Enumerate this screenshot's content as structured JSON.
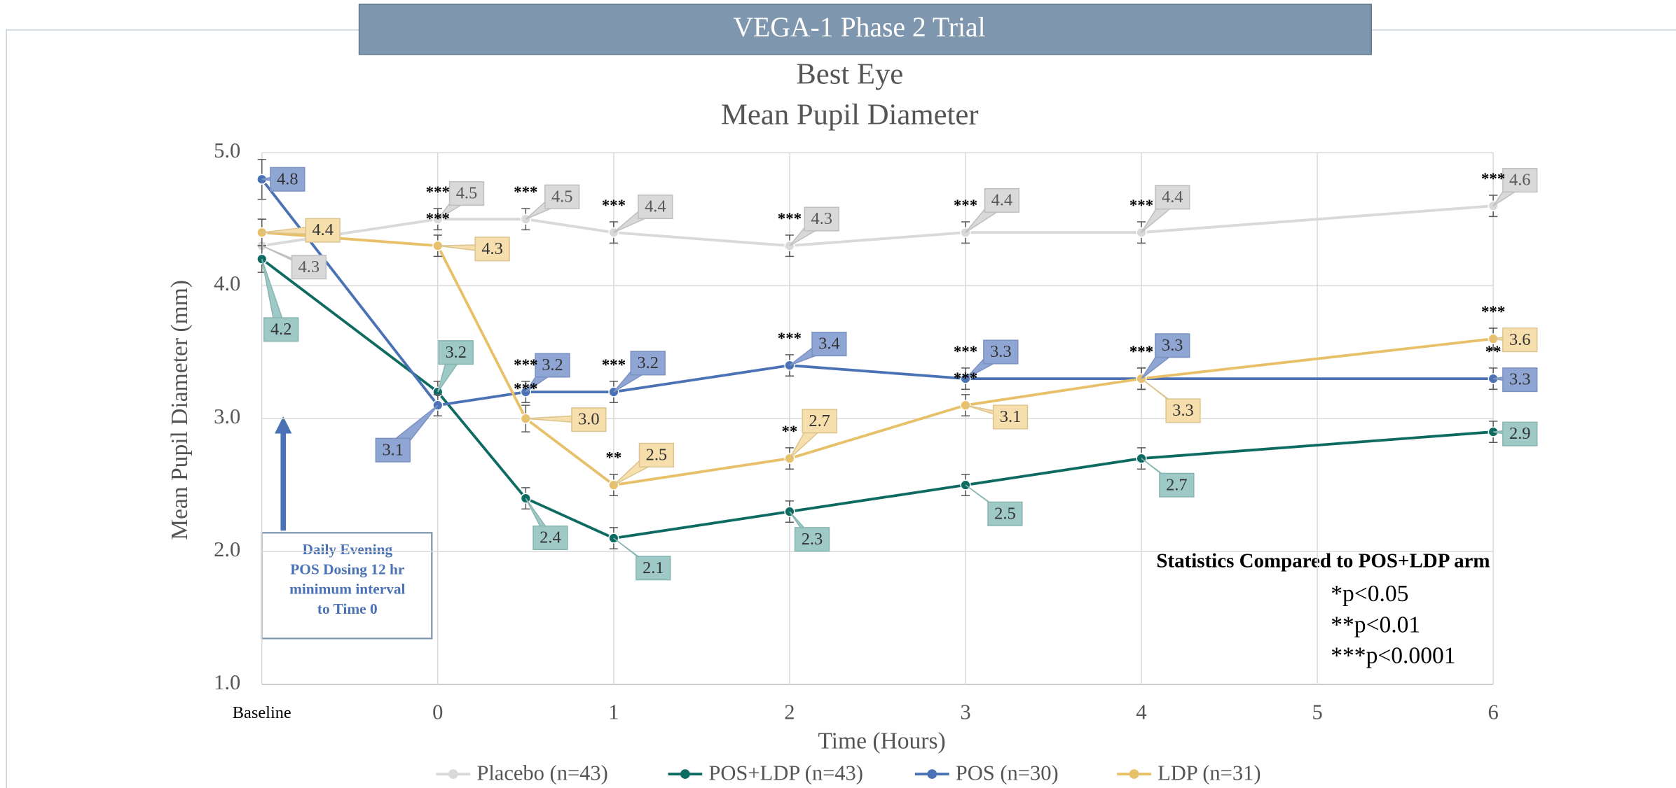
{
  "chart_data": {
    "type": "line",
    "header": "VEGA-1 Phase 2 Trial",
    "title": "Best Eye",
    "subtitle": "Mean Pupil Diameter",
    "x_label": "Time (Hours)",
    "y_label": "Mean Pupil Diameter (mm)",
    "x": [
      -1,
      0,
      0.5,
      1,
      2,
      3,
      4,
      6
    ],
    "xlim": [
      -1,
      6
    ],
    "xticks": [
      {
        "value": -1,
        "label": "Baseline"
      },
      0,
      1,
      2,
      3,
      4,
      5,
      6
    ],
    "ylim": [
      1,
      5
    ],
    "yticks": [
      {
        "value": 1,
        "label": "1.0"
      },
      {
        "value": 2,
        "label": "2.0"
      },
      {
        "value": 3,
        "label": "3.0"
      },
      {
        "value": 4,
        "label": "4.0"
      },
      {
        "value": 5,
        "label": "5.0"
      }
    ],
    "grid": true,
    "legend": "bottom",
    "series": [
      {
        "name": "Placebo (n=43)",
        "color": "#d9d9d9",
        "values": [
          4.3,
          4.5,
          4.5,
          4.4,
          4.3,
          4.4,
          4.4,
          4.6
        ],
        "value_labels": [
          "4.3",
          "4.5",
          "4.5",
          "4.4",
          "4.3",
          "4.4",
          "4.4",
          "4.6"
        ],
        "errors": [
          0.08,
          0.08,
          0.08,
          0.08,
          0.08,
          0.08,
          0.08,
          0.08
        ],
        "significance": [
          null,
          "***",
          "***",
          "***",
          "***",
          "***",
          "***",
          "***"
        ]
      },
      {
        "name": "POS+LDP (n=43)",
        "color": "#0e6b62",
        "values": [
          4.2,
          3.2,
          2.4,
          2.1,
          2.3,
          2.5,
          2.7,
          2.9
        ],
        "value_labels": [
          "4.2",
          "3.2",
          "2.4",
          "2.1",
          "2.3",
          "2.5",
          "2.7",
          "2.9"
        ],
        "errors": [
          0.1,
          0.08,
          0.08,
          0.08,
          0.08,
          0.08,
          0.08,
          0.08
        ],
        "significance": [
          null,
          null,
          null,
          null,
          null,
          null,
          null,
          null
        ]
      },
      {
        "name": "POS (n=30)",
        "color": "#4a72b5",
        "values": [
          4.8,
          3.1,
          3.2,
          3.2,
          3.4,
          3.3,
          3.3,
          3.3
        ],
        "value_labels": [
          "4.8",
          "3.1",
          "3.2",
          "3.2",
          "3.4",
          "3.3",
          "3.3",
          "3.3"
        ],
        "errors": [
          0.15,
          0.08,
          0.08,
          0.08,
          0.08,
          0.08,
          0.08,
          0.08
        ],
        "significance": [
          null,
          null,
          "***",
          "***",
          "***",
          "***",
          "***",
          "**"
        ]
      },
      {
        "name": "LDP (n=31)",
        "color": "#e8c06a",
        "values": [
          4.4,
          4.3,
          3.0,
          2.5,
          2.7,
          3.1,
          3.3,
          3.6
        ],
        "value_labels": [
          "4.4",
          "4.3",
          "3.0",
          "2.5",
          "2.7",
          "3.1",
          "3.3",
          "3.6"
        ],
        "errors": [
          0.1,
          0.08,
          0.1,
          0.08,
          0.08,
          0.08,
          0.08,
          0.08
        ],
        "significance": [
          null,
          "***",
          "***",
          "**",
          "**",
          "***",
          "***",
          "***"
        ]
      }
    ],
    "dosing_note": [
      "Daily Evening",
      "POS Dosing 12 hr",
      "minimum interval",
      "to Time 0"
    ],
    "stats_note": {
      "title": "Statistics Compared to POS+LDP arm",
      "lines": [
        "*p<0.05",
        "**p<0.01",
        "***p<0.0001"
      ]
    }
  }
}
